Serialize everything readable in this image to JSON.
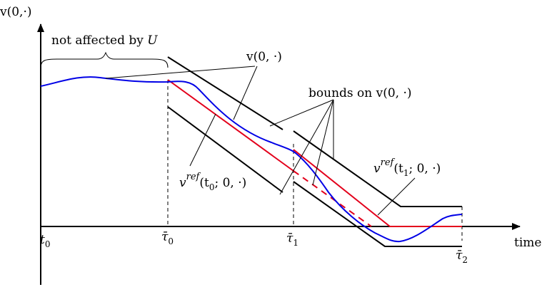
{
  "axes": {
    "y_label_base": "v(0,",
    "y_label_dot": "·",
    "y_label_close": ")",
    "x_label": "time"
  },
  "ticks": {
    "t0_base": "t",
    "t0_sub": "0",
    "tau0_base": "τ̄",
    "tau0_sub": "0",
    "tau1_base": "τ̄",
    "tau1_sub": "1",
    "tau2_base": "τ̄",
    "tau2_sub": "2"
  },
  "annotations": {
    "not_affected": "not affected by ",
    "not_affected_symbol": "U",
    "v_label": "v(0, ·)",
    "bounds_label": "bounds on v(0, ·)",
    "vref0_base": "v",
    "vref0_sup": "ref",
    "vref0_args": "(t",
    "vref0_sub": "0",
    "vref0_tail": "; 0, ·)",
    "vref1_base": "v",
    "vref1_sup": "ref",
    "vref1_args": "(t",
    "vref1_sub": "1",
    "vref1_tail": "; 0, ·)"
  },
  "colors": {
    "trajectory": "#0000e6",
    "reference": "#e3001b",
    "bounds": "#000000"
  }
}
